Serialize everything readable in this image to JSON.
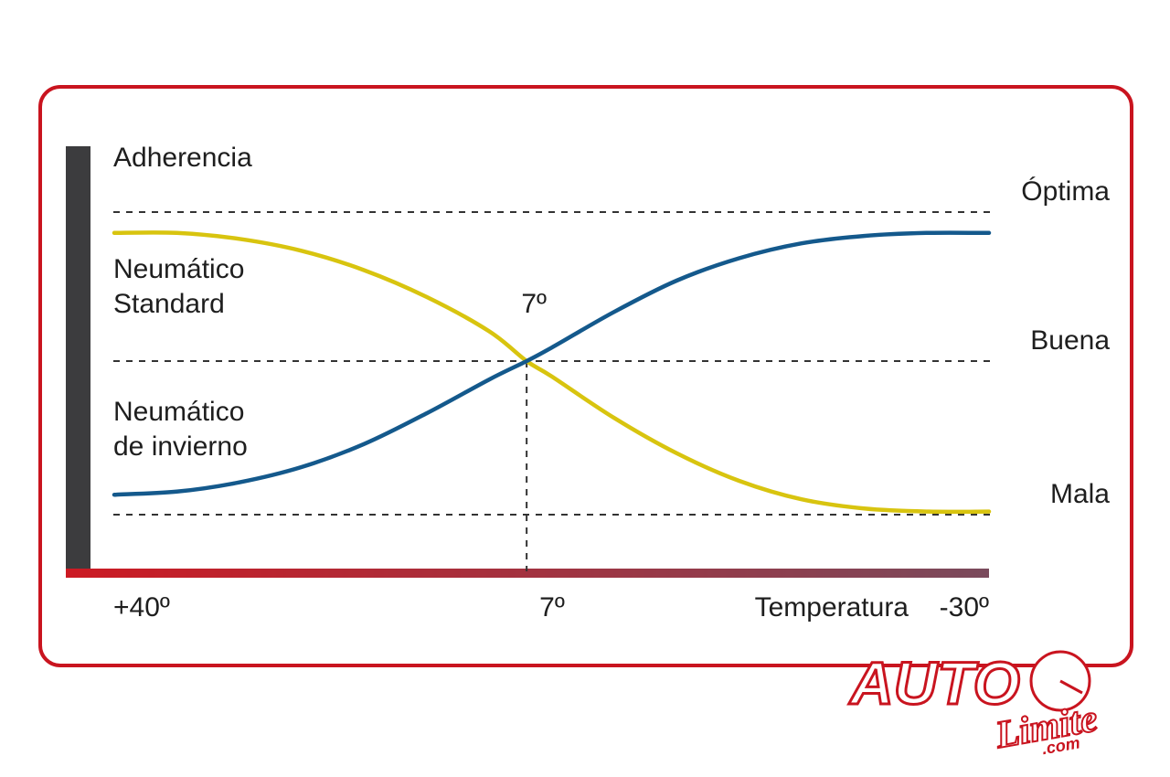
{
  "chart_data": {
    "type": "line",
    "ylabel": "Adherencia",
    "xlabel": "Temperatura",
    "x_ticks": [
      "+40º",
      "7º",
      "-30º"
    ],
    "x_range": [
      40,
      -30
    ],
    "y_levels": [
      {
        "label": "Óptima",
        "value": 2
      },
      {
        "label": "Buena",
        "value": 1
      },
      {
        "label": "Mala",
        "value": 0
      }
    ],
    "crossover": {
      "x": 7,
      "label": "7º"
    },
    "series": [
      {
        "name_lines": [
          "Neumático",
          "Standard"
        ],
        "color": "#d8c40f",
        "x": [
          40,
          35,
          30,
          25,
          20,
          15,
          10,
          7,
          5,
          0,
          -5,
          -10,
          -15,
          -20,
          -25,
          -30
        ],
        "y": [
          1.86,
          1.86,
          1.82,
          1.74,
          1.61,
          1.43,
          1.2,
          1.0,
          0.9,
          0.63,
          0.4,
          0.22,
          0.1,
          0.04,
          0.02,
          0.02
        ]
      },
      {
        "name_lines": [
          "Neumático",
          "de invierno"
        ],
        "color": "#14598c",
        "x": [
          40,
          35,
          30,
          25,
          20,
          15,
          10,
          7,
          5,
          0,
          -5,
          -10,
          -15,
          -20,
          -25,
          -30
        ],
        "y": [
          0.13,
          0.15,
          0.21,
          0.31,
          0.46,
          0.66,
          0.88,
          1.0,
          1.09,
          1.33,
          1.54,
          1.69,
          1.79,
          1.84,
          1.86,
          1.86
        ]
      }
    ]
  },
  "logo": {
    "text": "AUTO",
    "subtext": "Limite",
    "domain": ".com"
  }
}
